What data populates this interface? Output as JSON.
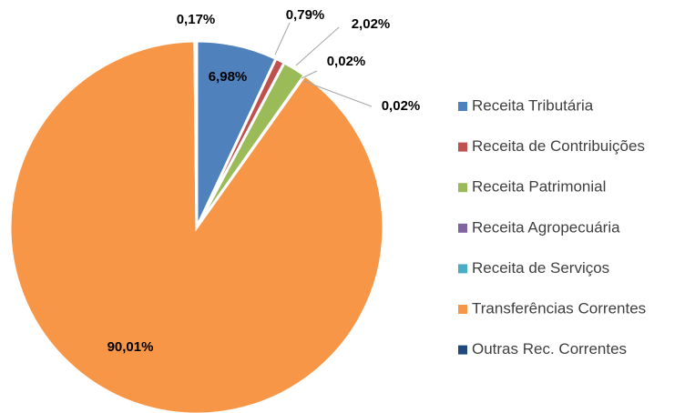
{
  "chart_data": {
    "type": "pie",
    "categories": [
      "Receita Tributária",
      "Receita de Contribuições",
      "Receita Patrimonial",
      "Receita Agropecuária",
      "Receita de Serviços",
      "Transferências Correntes",
      "Outras Rec. Correntes"
    ],
    "values": [
      6.98,
      0.79,
      2.02,
      0.02,
      0.02,
      90.01,
      0.17
    ],
    "value_labels": [
      "6,98%",
      "0,79%",
      "2,02%",
      "0,02%",
      "0,02%",
      "90,01%",
      "0,17%"
    ],
    "colors": [
      "#4f81bd",
      "#c0504d",
      "#9bbb59",
      "#8064a2",
      "#4bacc6",
      "#f79646",
      "#1f497d"
    ],
    "legend": "right"
  }
}
